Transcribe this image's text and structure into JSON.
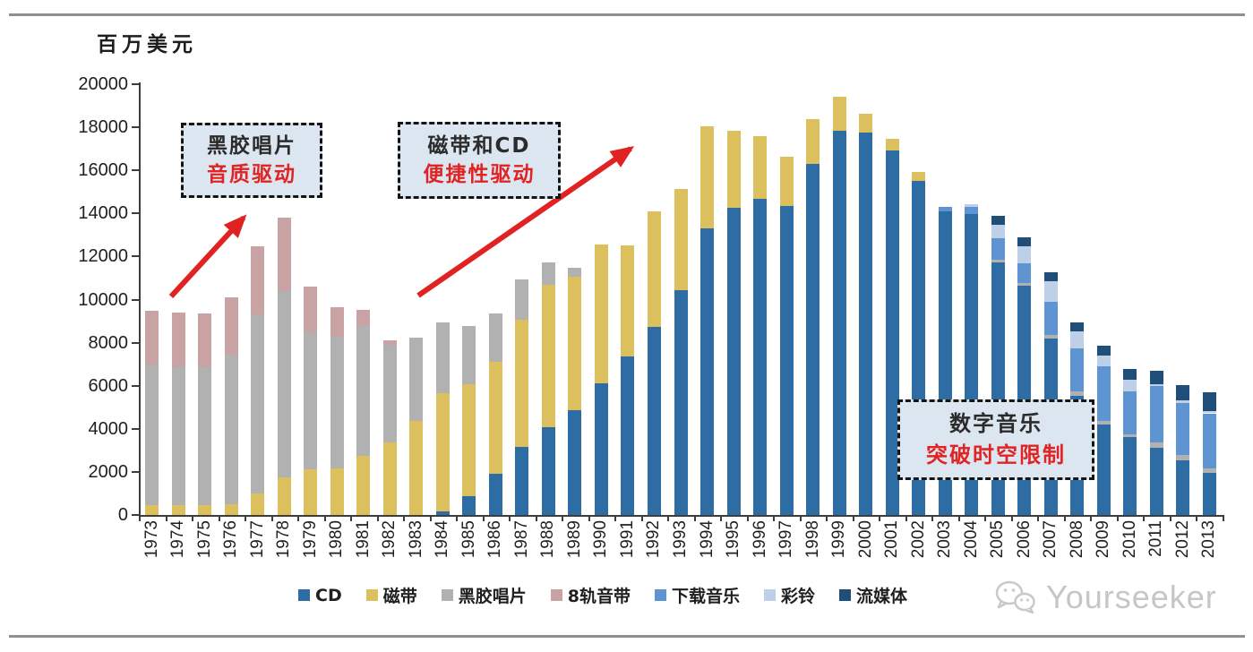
{
  "page": {
    "unit_label": "百万美元",
    "watermark": "Yourseeker"
  },
  "annotations": [
    {
      "line1": "黑胶唱片",
      "line2": "音质驱动"
    },
    {
      "line1": "磁带和CD",
      "line2": "便捷性驱动"
    },
    {
      "line1": "数字音乐",
      "line2": "突破时空限制"
    }
  ],
  "colors": {
    "arrow_red": "#e02222",
    "annotation_fill": "#dce6f1",
    "annotation_red_text": "#e02424",
    "watermark_gray": "#c6c6c6",
    "axis": "#3d3d3d"
  },
  "chart_data": {
    "type": "bar",
    "stacked": true,
    "ylabel": "百万美元",
    "ylim": [
      0,
      20000
    ],
    "yticks": [
      0,
      2000,
      4000,
      6000,
      8000,
      10000,
      12000,
      14000,
      16000,
      18000,
      20000
    ],
    "grid": false,
    "legend_position": "bottom",
    "categories": [
      "1973",
      "1974",
      "1975",
      "1976",
      "1977",
      "1978",
      "1979",
      "1980",
      "1981",
      "1982",
      "1983",
      "1984",
      "1985",
      "1986",
      "1987",
      "1988",
      "1989",
      "1990",
      "1991",
      "1992",
      "1993",
      "1994",
      "1995",
      "1996",
      "1997",
      "1998",
      "1999",
      "2000",
      "2001",
      "2002",
      "2003",
      "2004",
      "2005",
      "2006",
      "2007",
      "2008",
      "2009",
      "2010",
      "2011",
      "2012",
      "2013"
    ],
    "series": [
      {
        "name": "CD",
        "color": "#2e6da4",
        "values": [
          0,
          0,
          0,
          0,
          0,
          0,
          0,
          0,
          0,
          0,
          0,
          150,
          860,
          1930,
          3150,
          4055,
          4860,
          6110,
          7360,
          8740,
          10450,
          13290,
          14260,
          14680,
          14330,
          16300,
          17830,
          17760,
          16940,
          15510,
          14100,
          13980,
          11720,
          10650,
          8200,
          5515,
          4200,
          3600,
          3100,
          2555,
          1970
        ]
      },
      {
        "name": "磁带",
        "color": "#ddc05e",
        "values": [
          450,
          450,
          450,
          510,
          1000,
          1765,
          2125,
          2180,
          2740,
          3360,
          4360,
          5505,
          5210,
          5180,
          5935,
          6640,
          6210,
          6445,
          5170,
          5345,
          4675,
          4750,
          3575,
          2920,
          2295,
          2090,
          1575,
          880,
          520,
          420,
          0,
          0,
          0,
          0,
          0,
          0,
          0,
          0,
          0,
          0,
          0
        ]
      },
      {
        "name": "黑胶唱片",
        "color": "#b1b1b1",
        "values": [
          6520,
          6430,
          6430,
          6950,
          8335,
          8640,
          6375,
          6110,
          6040,
          4540,
          3860,
          3290,
          2710,
          2265,
          1845,
          1025,
          420,
          0,
          0,
          0,
          0,
          0,
          0,
          0,
          0,
          0,
          0,
          0,
          0,
          0,
          0,
          0,
          120,
          100,
          140,
          210,
          150,
          150,
          260,
          250,
          210
        ]
      },
      {
        "name": "8轨音带",
        "color": "#c9a3a3",
        "values": [
          2530,
          2500,
          2490,
          2665,
          3125,
          3400,
          2085,
          1350,
          760,
          200,
          0,
          0,
          0,
          0,
          0,
          0,
          0,
          0,
          0,
          0,
          0,
          0,
          0,
          0,
          0,
          0,
          0,
          0,
          0,
          0,
          0,
          0,
          0,
          0,
          0,
          0,
          0,
          0,
          0,
          0,
          0
        ]
      },
      {
        "name": "下载音乐",
        "color": "#5f94d2",
        "values": [
          0,
          0,
          0,
          0,
          0,
          0,
          0,
          0,
          0,
          0,
          0,
          0,
          0,
          0,
          0,
          0,
          0,
          0,
          0,
          0,
          0,
          0,
          0,
          0,
          0,
          0,
          0,
          0,
          0,
          0,
          190,
          330,
          1000,
          950,
          1550,
          2015,
          2550,
          1975,
          2610,
          2400,
          2540
        ]
      },
      {
        "name": "彩铃",
        "color": "#bdd0e8",
        "values": [
          0,
          0,
          0,
          0,
          0,
          0,
          0,
          0,
          0,
          0,
          0,
          0,
          0,
          0,
          0,
          0,
          0,
          0,
          0,
          0,
          0,
          0,
          0,
          0,
          0,
          0,
          0,
          0,
          0,
          0,
          0,
          120,
          620,
          760,
          970,
          790,
          490,
          555,
          100,
          100,
          100
        ]
      },
      {
        "name": "流媒体",
        "color": "#1f4e79",
        "values": [
          0,
          0,
          0,
          0,
          0,
          0,
          0,
          0,
          0,
          0,
          0,
          0,
          0,
          0,
          0,
          0,
          0,
          0,
          0,
          0,
          0,
          0,
          0,
          0,
          0,
          0,
          0,
          0,
          0,
          0,
          0,
          0,
          410,
          440,
          390,
          390,
          485,
          485,
          630,
          725,
          860
        ]
      }
    ]
  }
}
